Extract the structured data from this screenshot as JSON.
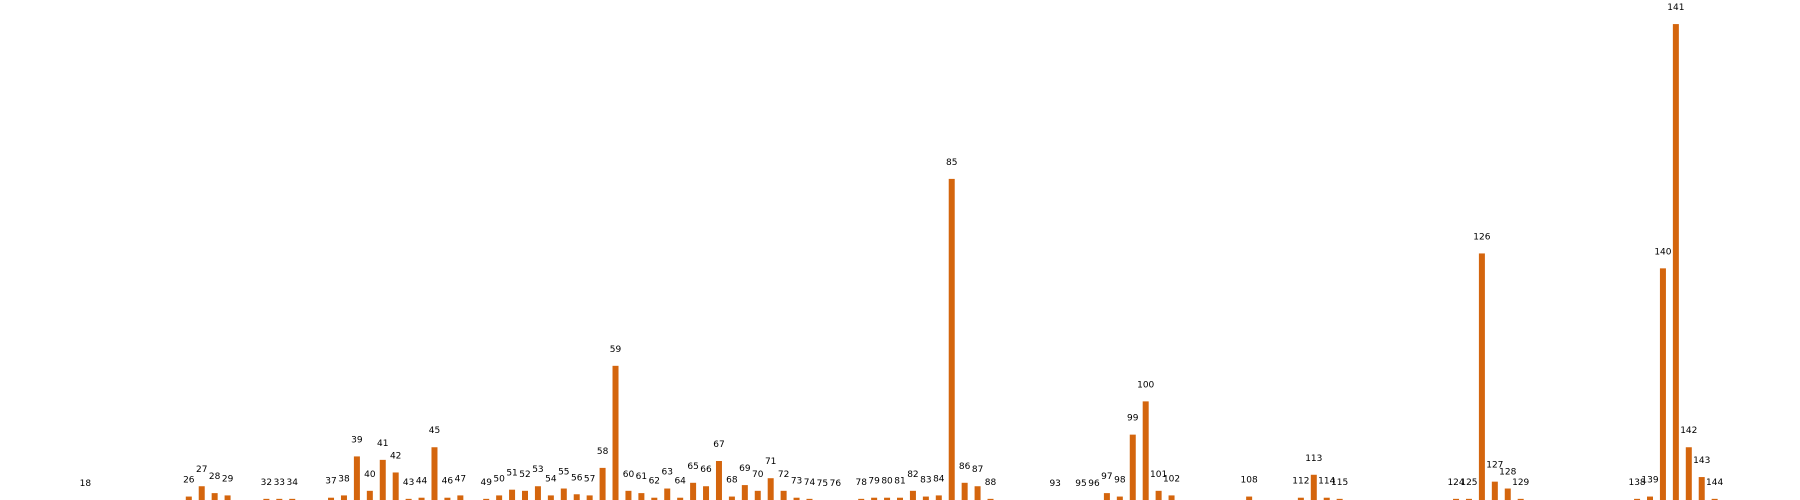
{
  "chart_data": {
    "type": "bar",
    "color": "#d4650d",
    "x": [
      18,
      26,
      27,
      28,
      29,
      32,
      33,
      34,
      37,
      38,
      39,
      40,
      41,
      42,
      43,
      44,
      45,
      46,
      47,
      49,
      50,
      51,
      52,
      53,
      54,
      55,
      56,
      57,
      58,
      59,
      60,
      61,
      62,
      63,
      64,
      65,
      66,
      67,
      68,
      69,
      70,
      71,
      72,
      73,
      74,
      75,
      76,
      78,
      79,
      80,
      81,
      82,
      83,
      84,
      85,
      86,
      87,
      88,
      93,
      95,
      96,
      97,
      98,
      99,
      100,
      101,
      102,
      108,
      112,
      113,
      114,
      115,
      124,
      125,
      126,
      127,
      128,
      129,
      138,
      139,
      140,
      141,
      142,
      143,
      144
    ],
    "values": [
      0,
      3,
      12,
      6,
      4,
      1,
      1,
      1,
      2,
      4,
      38,
      8,
      35,
      24,
      1,
      2,
      46,
      2,
      4,
      1,
      4,
      9,
      8,
      12,
      4,
      10,
      5,
      4,
      28,
      117,
      8,
      6,
      2,
      10,
      2,
      15,
      12,
      34,
      3,
      13,
      8,
      19,
      8,
      2,
      1,
      0,
      0,
      1,
      2,
      2,
      2,
      8,
      3,
      4,
      280,
      15,
      12,
      1,
      0,
      0,
      0,
      6,
      3,
      57,
      86,
      8,
      4,
      3,
      2,
      22,
      2,
      1,
      1,
      1,
      215,
      16,
      10,
      1,
      1,
      3,
      202,
      415,
      46,
      20,
      1
    ],
    "xlim": [
      11.4,
      150.6
    ],
    "ylim": [
      0,
      436
    ]
  }
}
